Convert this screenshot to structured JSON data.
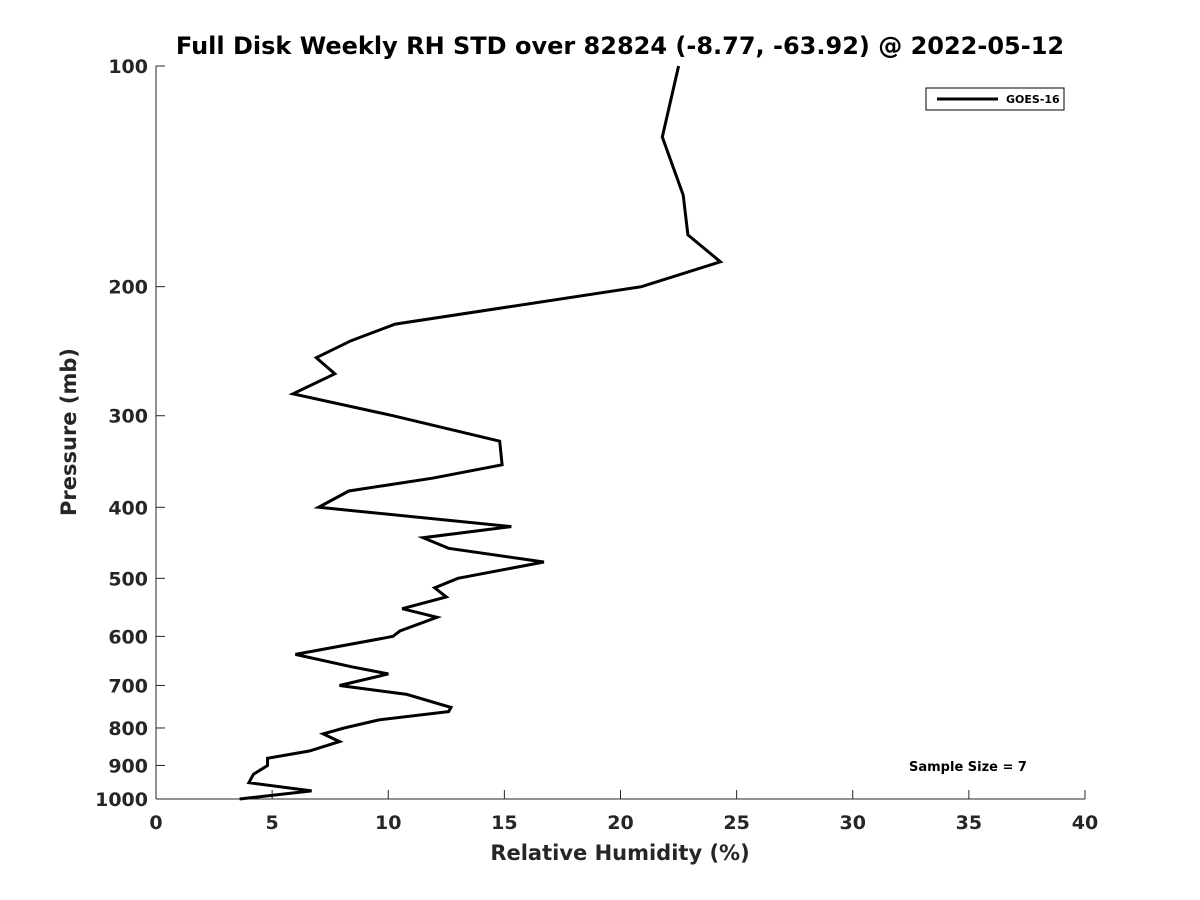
{
  "chart_data": {
    "type": "line",
    "title": "Full Disk Weekly RH STD over 82824 (-8.77, -63.92) @ 2022-05-12",
    "xlabel": "Relative Humidity (%)",
    "ylabel": "Pressure (mb)",
    "xlim": [
      0,
      40
    ],
    "ylim": [
      100,
      1000
    ],
    "yscale": "log",
    "y_reversed": true,
    "xticks": [
      "0",
      "5",
      "10",
      "15",
      "20",
      "25",
      "30",
      "35",
      "40"
    ],
    "yticks": [
      "100",
      "200",
      "300",
      "400",
      "500",
      "600",
      "700",
      "800",
      "900",
      "1000"
    ],
    "grid": false,
    "legend_position": "top-right",
    "annotation": "Sample Size = 7",
    "series": [
      {
        "name": "GOES-16",
        "color": "#000000",
        "points": [
          [
            22.5,
            100
          ],
          [
            21.8,
            125
          ],
          [
            22.7,
            150
          ],
          [
            22.9,
            170
          ],
          [
            24.3,
            185
          ],
          [
            20.9,
            200
          ],
          [
            10.3,
            225
          ],
          [
            8.4,
            237
          ],
          [
            6.9,
            250
          ],
          [
            7.7,
            263
          ],
          [
            5.9,
            280
          ],
          [
            10.2,
            300
          ],
          [
            14.8,
            325
          ],
          [
            14.9,
            350
          ],
          [
            11.9,
            365
          ],
          [
            8.3,
            380
          ],
          [
            7.0,
            400
          ],
          [
            15.3,
            425
          ],
          [
            11.5,
            440
          ],
          [
            12.6,
            455
          ],
          [
            16.7,
            475
          ],
          [
            13.0,
            500
          ],
          [
            12.0,
            515
          ],
          [
            12.5,
            530
          ],
          [
            10.6,
            550
          ],
          [
            12.1,
            565
          ],
          [
            10.5,
            590
          ],
          [
            10.2,
            600
          ],
          [
            6.0,
            635
          ],
          [
            8.4,
            660
          ],
          [
            10.0,
            675
          ],
          [
            7.9,
            700
          ],
          [
            10.8,
            720
          ],
          [
            12.7,
            750
          ],
          [
            12.6,
            760
          ],
          [
            9.6,
            780
          ],
          [
            8.1,
            800
          ],
          [
            7.2,
            815
          ],
          [
            7.9,
            835
          ],
          [
            6.6,
            860
          ],
          [
            4.8,
            880
          ],
          [
            4.8,
            900
          ],
          [
            4.2,
            925
          ],
          [
            4.0,
            950
          ],
          [
            6.7,
            975
          ],
          [
            3.6,
            1000
          ]
        ]
      }
    ]
  }
}
